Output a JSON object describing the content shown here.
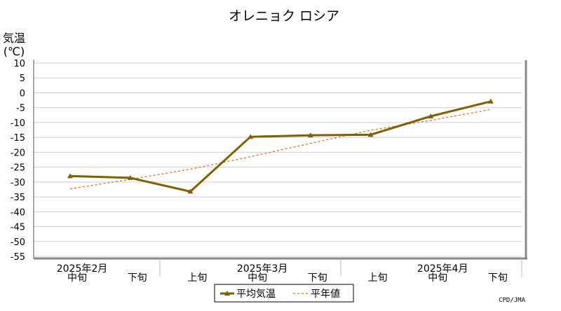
{
  "chart_data": {
    "type": "line",
    "title": "オレニョク ロシア",
    "ylabel_line1": "気温",
    "ylabel_line2": "(℃)",
    "ylim": [
      -55,
      10
    ],
    "yticks": [
      10,
      5,
      0,
      -5,
      -10,
      -15,
      -20,
      -25,
      -30,
      -35,
      -40,
      -45,
      -50,
      -55
    ],
    "grid": true,
    "categories": [
      "中旬",
      "下旬",
      "上旬",
      "中旬",
      "下旬",
      "上旬",
      "中旬",
      "下旬"
    ],
    "month_labels": [
      {
        "label": "2025年2月",
        "category_index": 0
      },
      {
        "label": "2025年3月",
        "category_index": 3
      },
      {
        "label": "2025年4月",
        "category_index": 6
      }
    ],
    "series": [
      {
        "name": "平均気温",
        "color": "#806000",
        "style": "solid-marker",
        "values": [
          -28.0,
          -28.6,
          -33.2,
          -14.8,
          -14.3,
          -14.1,
          -7.9,
          -2.9
        ]
      },
      {
        "name": "平年値",
        "color": "#e07020",
        "style": "dashed",
        "values": [
          -32.3,
          -29.1,
          -25.7,
          -21.5,
          -17.0,
          -12.6,
          -9.3,
          -5.6
        ]
      }
    ],
    "legend_placement": "bottom",
    "credit": "CPD/JMA"
  }
}
